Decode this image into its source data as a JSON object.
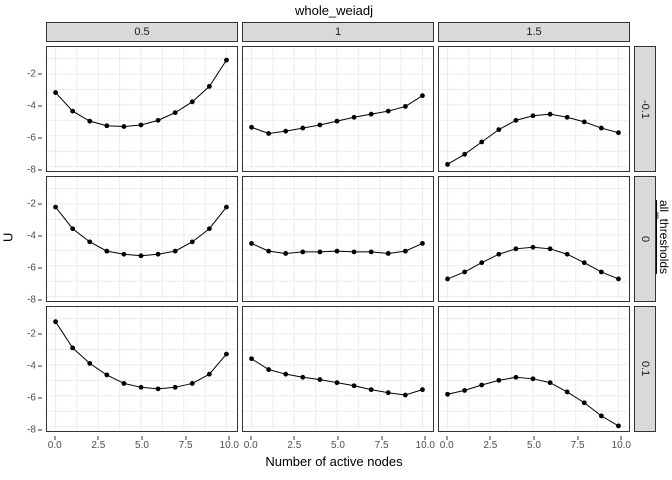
{
  "title": "whole_weiadj",
  "xlabel": "Number of active nodes",
  "ylabel": "U",
  "right_facet_var": "all_thresholds",
  "chart_data": {
    "type": "line",
    "description": "3x3 faceted line+point plot (ggplot-style). Columns = whole_weiadj (0.5, 1, 1.5); rows = all_thresholds (-0.1, 0, 0.1). Each panel plots U versus number of active nodes 0..10.",
    "facet": {
      "col_var": "whole_weiadj",
      "col_labels": [
        "0.5",
        "1",
        "1.5"
      ],
      "row_var": "all_thresholds",
      "row_labels": [
        "-0.1",
        "0",
        "0.1"
      ]
    },
    "x": [
      0,
      1,
      2,
      3,
      4,
      5,
      6,
      7,
      8,
      9,
      10
    ],
    "x_ticks": [
      "0.0",
      "2.5",
      "5.0",
      "7.5",
      "10.0"
    ],
    "x_tick_values": [
      0,
      2.5,
      5,
      7.5,
      10
    ],
    "y_ticks": [
      "-2",
      "-4",
      "-6",
      "-8"
    ],
    "y_tick_values": [
      -2,
      -4,
      -6,
      -8
    ],
    "xlim": [
      -0.5,
      10.5
    ],
    "ylim": [
      -8.15,
      -0.25
    ],
    "grid": {
      "show": true,
      "x_step": 1.25,
      "y_step": 1
    },
    "panels": [
      {
        "col": "0.5",
        "row": "-0.1",
        "values": [
          -3.2,
          -4.4,
          -5.05,
          -5.35,
          -5.4,
          -5.3,
          -5.0,
          -4.5,
          -3.8,
          -2.8,
          -1.1
        ]
      },
      {
        "col": "1",
        "row": "-0.1",
        "values": [
          -5.45,
          -5.85,
          -5.7,
          -5.5,
          -5.3,
          -5.05,
          -4.8,
          -4.6,
          -4.4,
          -4.1,
          -3.4
        ]
      },
      {
        "col": "1.5",
        "row": "-0.1",
        "values": [
          -7.85,
          -7.2,
          -6.4,
          -5.6,
          -5.0,
          -4.7,
          -4.6,
          -4.8,
          -5.1,
          -5.5,
          -5.8
        ]
      },
      {
        "col": "0.5",
        "row": "0",
        "values": [
          -2.2,
          -3.6,
          -4.45,
          -5.05,
          -5.25,
          -5.35,
          -5.25,
          -5.05,
          -4.45,
          -3.6,
          -2.2
        ]
      },
      {
        "col": "1",
        "row": "0",
        "values": [
          -4.55,
          -5.05,
          -5.2,
          -5.1,
          -5.1,
          -5.05,
          -5.1,
          -5.1,
          -5.2,
          -5.05,
          -4.55
        ]
      },
      {
        "col": "1.5",
        "row": "0",
        "values": [
          -6.85,
          -6.4,
          -5.8,
          -5.25,
          -4.9,
          -4.8,
          -4.9,
          -5.25,
          -5.8,
          -6.4,
          -6.85
        ]
      },
      {
        "col": "0.5",
        "row": "0.1",
        "values": [
          -1.2,
          -2.9,
          -3.9,
          -4.65,
          -5.2,
          -5.45,
          -5.55,
          -5.45,
          -5.2,
          -4.6,
          -3.3
        ]
      },
      {
        "col": "1",
        "row": "0.1",
        "values": [
          -3.6,
          -4.3,
          -4.6,
          -4.8,
          -4.95,
          -5.15,
          -5.35,
          -5.6,
          -5.8,
          -5.95,
          -5.6
        ]
      },
      {
        "col": "1.5",
        "row": "0.1",
        "values": [
          -5.9,
          -5.65,
          -5.3,
          -5.0,
          -4.8,
          -4.9,
          -5.15,
          -5.75,
          -6.45,
          -7.3,
          -7.95
        ]
      }
    ],
    "legend": null,
    "colors": {
      "point": "#000000",
      "line": "#000000",
      "gridline": "#ebebeb",
      "strip_bg": "#d9d9d9",
      "panel_border": "#333333",
      "tick_label": "#4d4d4d",
      "panel_bg": "#ffffff"
    }
  }
}
